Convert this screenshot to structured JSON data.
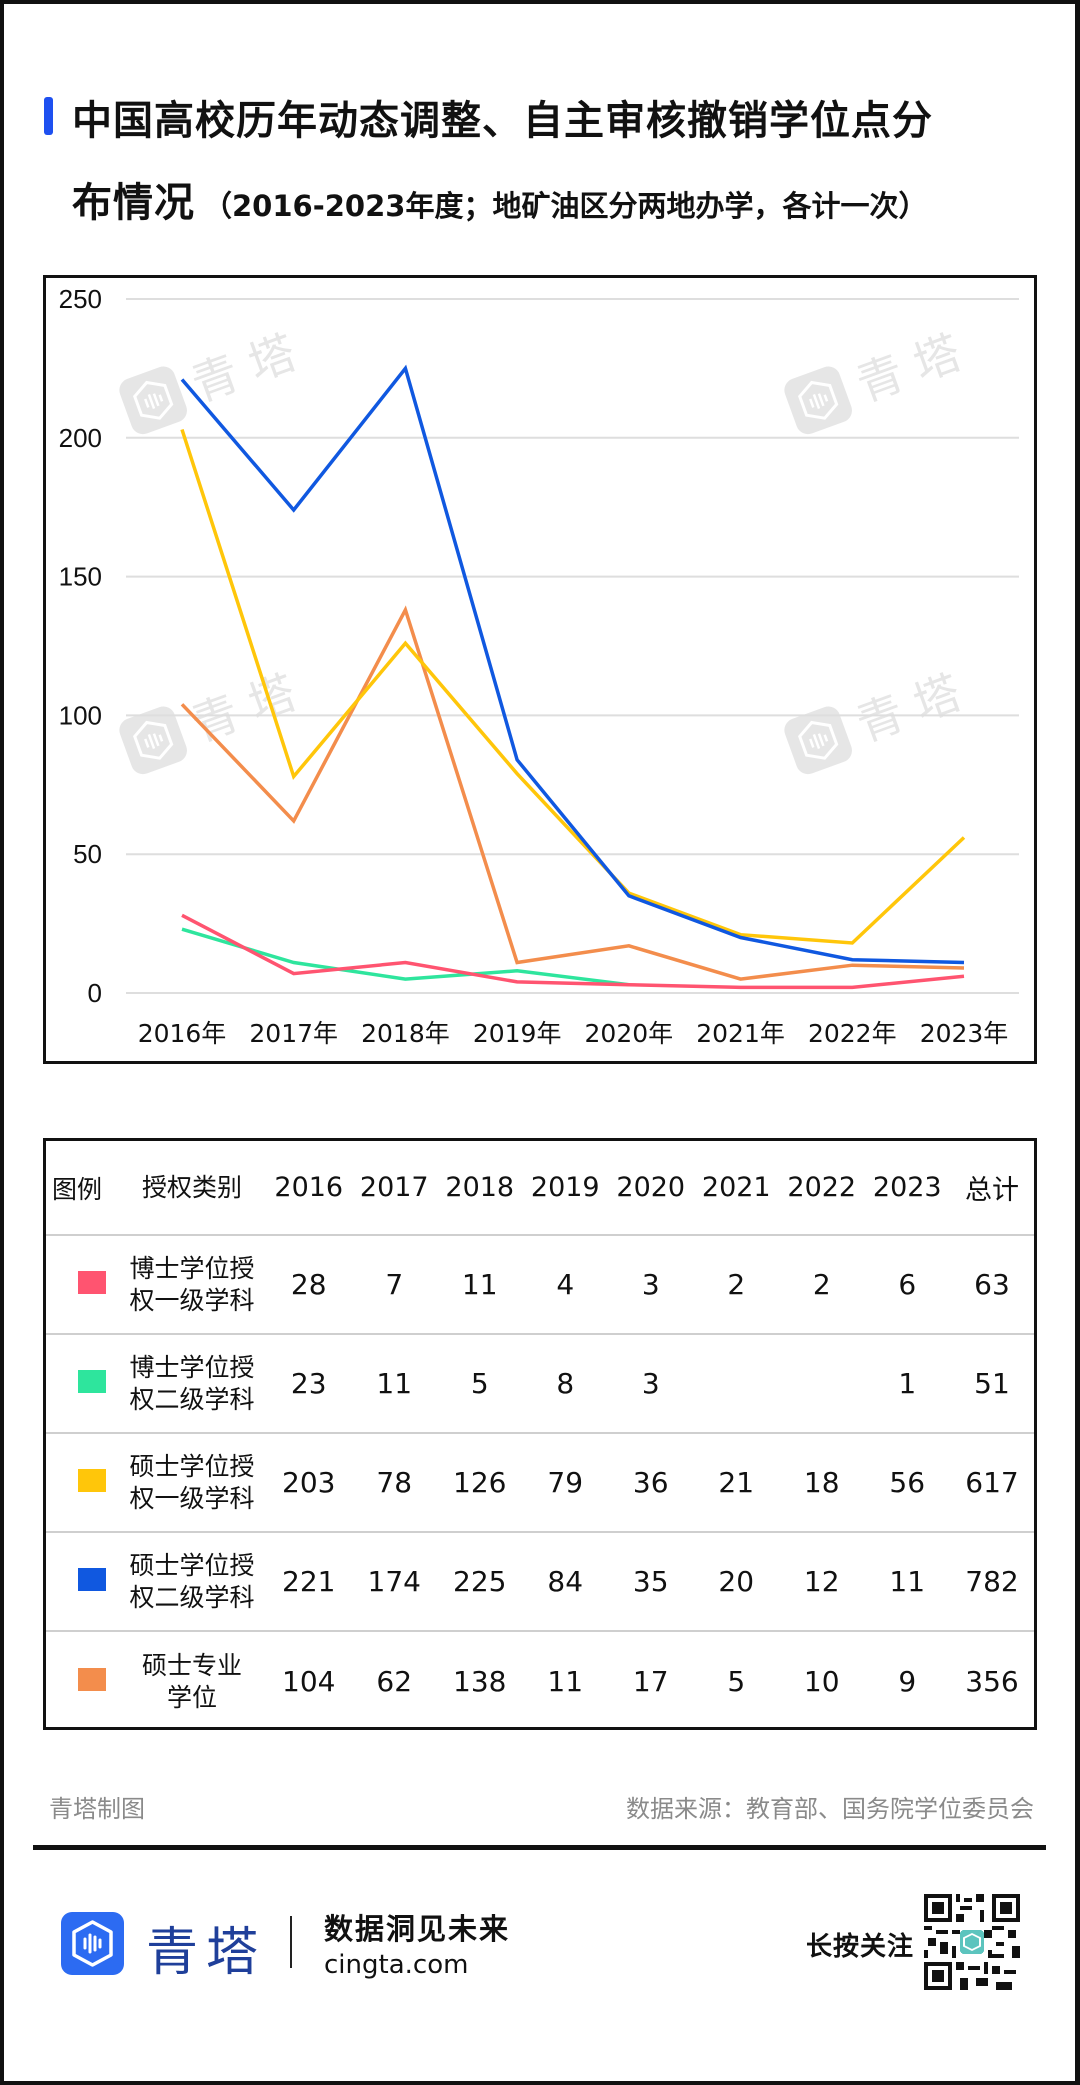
{
  "header": {
    "title_line1": "中国高校历年动态调整、自主审核撤销学位点分",
    "title_line2_main": "布情况",
    "title_line2_sub": "（2016-2023年度；地矿油区分两地办学，各计一次）",
    "accent_color": "#1E50F0"
  },
  "watermark": {
    "text": "青塔"
  },
  "chart_data": {
    "type": "line",
    "title": "中国高校历年动态调整、自主审核撤销学位点分布情况（2016-2023年度；地矿油区分两地办学，各计一次）",
    "xlabel": "",
    "ylabel": "",
    "x": [
      "2016年",
      "2017年",
      "2018年",
      "2019年",
      "2020年",
      "2021年",
      "2022年",
      "2023年"
    ],
    "ylim": [
      0,
      250
    ],
    "yticks": [
      0,
      50,
      100,
      150,
      200,
      250
    ],
    "grid": true,
    "legend_position": "table-below",
    "series": [
      {
        "name": "博士学位授权一级学科",
        "color": "#FF5470",
        "values": [
          28,
          7,
          11,
          4,
          3,
          2,
          2,
          6
        ]
      },
      {
        "name": "博士学位授权二级学科",
        "color": "#2EE59D",
        "values": [
          23,
          11,
          5,
          8,
          3,
          null,
          null,
          1
        ]
      },
      {
        "name": "硕士学位授权一级学科",
        "color": "#FFC60A",
        "values": [
          203,
          78,
          126,
          79,
          36,
          21,
          18,
          56
        ]
      },
      {
        "name": "硕士学位授权二级学科",
        "color": "#1058E0",
        "values": [
          221,
          174,
          225,
          84,
          35,
          20,
          12,
          11
        ]
      },
      {
        "name": "硕士专业学位",
        "color": "#F38D4C",
        "values": [
          104,
          62,
          138,
          11,
          17,
          5,
          10,
          9
        ]
      }
    ]
  },
  "table": {
    "headers": [
      "图例",
      "授权类别",
      "2016",
      "2017",
      "2018",
      "2019",
      "2020",
      "2021",
      "2022",
      "2023",
      "总计"
    ],
    "rows": [
      {
        "color": "#FF5470",
        "category_line1": "博士学位授",
        "category_line2": "权一级学科",
        "values": [
          "28",
          "7",
          "11",
          "4",
          "3",
          "2",
          "2",
          "6"
        ],
        "total": "63"
      },
      {
        "color": "#2EE59D",
        "category_line1": "博士学位授",
        "category_line2": "权二级学科",
        "values": [
          "23",
          "11",
          "5",
          "8",
          "3",
          "",
          "",
          "1"
        ],
        "total": "51"
      },
      {
        "color": "#FFC60A",
        "category_line1": "硕士学位授",
        "category_line2": "权一级学科",
        "values": [
          "203",
          "78",
          "126",
          "79",
          "36",
          "21",
          "18",
          "56"
        ],
        "total": "617"
      },
      {
        "color": "#1058E0",
        "category_line1": "硕士学位授",
        "category_line2": "权二级学科",
        "values": [
          "221",
          "174",
          "225",
          "84",
          "35",
          "20",
          "12",
          "11"
        ],
        "total": "782"
      },
      {
        "color": "#F38D4C",
        "category_line1": "硕士专业",
        "category_line2": "学位",
        "values": [
          "104",
          "62",
          "138",
          "11",
          "17",
          "5",
          "10",
          "9"
        ],
        "total": "356"
      }
    ]
  },
  "footer": {
    "credit": "青塔制图",
    "source": "数据来源：教育部、国务院学位委员会"
  },
  "brand": {
    "name": "青塔",
    "slogan": "数据洞见未来",
    "site": "cingta.com",
    "follow_label": "长按关注",
    "brand_color": "#2C6BF2"
  }
}
